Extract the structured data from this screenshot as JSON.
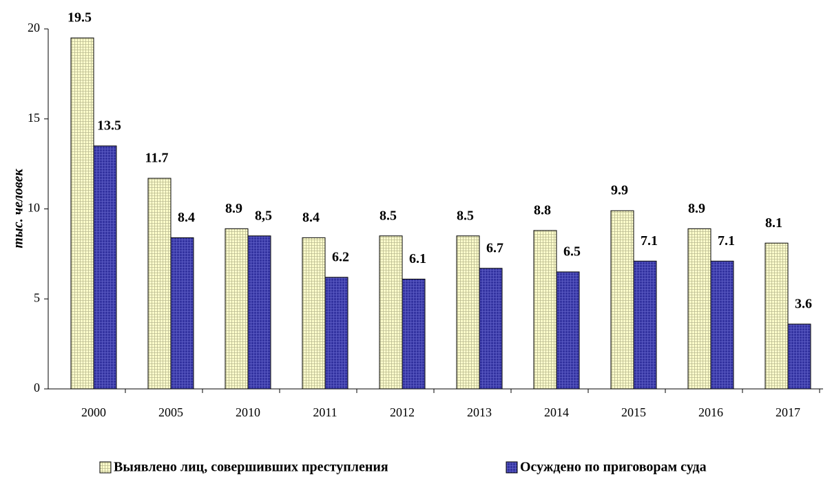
{
  "chart_data": {
    "type": "bar",
    "y_label": "тыс. человек",
    "categories": [
      "2000",
      "2005",
      "2010",
      "2011",
      "2012",
      "2013",
      "2014",
      "2015",
      "2016",
      "2017"
    ],
    "series": [
      {
        "name": "Выявлено лиц, совершивших преступления",
        "color": "#ffffcc",
        "values": [
          19.5,
          11.7,
          8.9,
          8.4,
          8.5,
          8.5,
          8.8,
          9.9,
          8.9,
          8.1
        ]
      },
      {
        "name": "Осуждено по приговорам суда",
        "color": "#3333a0",
        "values": [
          13.5,
          8.4,
          8.5,
          6.2,
          6.1,
          6.7,
          6.5,
          7.1,
          7.1,
          3.6
        ],
        "value_labels": [
          "13.5",
          "8.4",
          "8,5",
          "6.2",
          "6.1",
          "6.7",
          "6.5",
          "7.1",
          "7.1",
          "3.6"
        ]
      }
    ],
    "ylim": [
      0,
      20
    ],
    "yticks": [
      0,
      5,
      10,
      15,
      20
    ],
    "grid": false
  }
}
